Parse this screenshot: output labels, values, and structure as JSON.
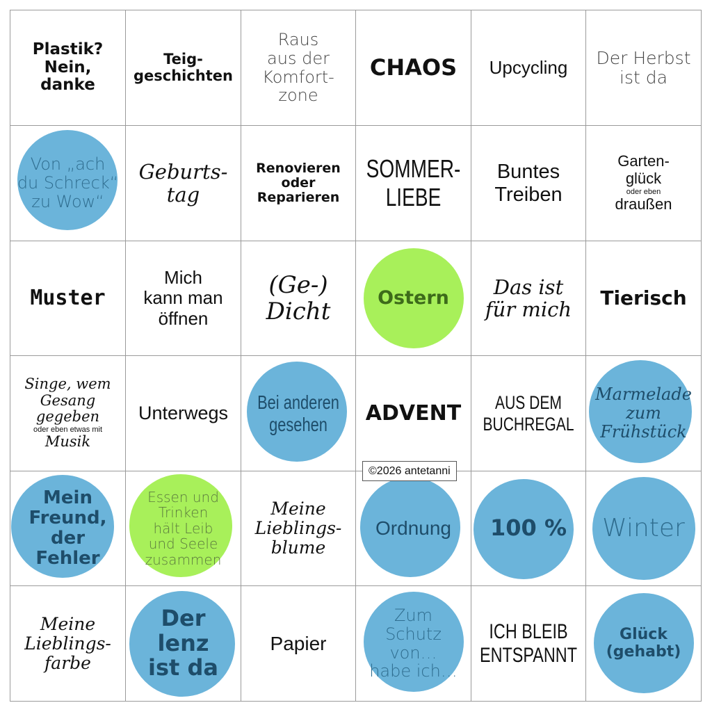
{
  "colors": {
    "blue": "#6bb4da",
    "green": "#a8f05a",
    "border": "#9a9a9a"
  },
  "cells": [
    {
      "lines": [
        "Plastik?",
        "Nein,",
        "danke"
      ],
      "font": "f-black",
      "size": 23,
      "circle": null
    },
    {
      "lines": [
        "Teig-",
        "geschichten"
      ],
      "font": "f-black",
      "size": 21,
      "circle": null
    },
    {
      "lines": [
        "Raus",
        "aus der",
        "Komfort-",
        "zone"
      ],
      "font": "f-light",
      "size": 24,
      "circle": null
    },
    {
      "lines": [
        "CHAOS"
      ],
      "font": "f-black",
      "size": 32,
      "circle": null
    },
    {
      "lines": [
        "Upcycling"
      ],
      "font": "f-sans",
      "size": 26,
      "circle": null
    },
    {
      "lines": [
        "Der Herbst",
        "ist da"
      ],
      "font": "f-light",
      "size": 25,
      "circle": null
    },
    {
      "lines": [
        "Von „ach",
        "du Schreck“",
        "zu Wow“"
      ],
      "font": "f-light",
      "size": 24,
      "circle": "blue"
    },
    {
      "lines": [
        "Geburts-",
        "tag"
      ],
      "font": "f-serif",
      "size": 29,
      "circle": null
    },
    {
      "lines": [
        "Renovieren",
        "oder",
        "Reparieren"
      ],
      "font": "f-black",
      "size": 19,
      "circle": null
    },
    {
      "lines": [
        "SOMMER-",
        "LIEBE"
      ],
      "font": "f-cond",
      "size": 36,
      "circle": null
    },
    {
      "lines": [
        "Buntes",
        "Treiben"
      ],
      "font": "f-sans",
      "size": 29,
      "circle": null
    },
    {
      "lines": [
        "Garten-",
        "glück",
        "oder eben",
        "draußen"
      ],
      "font": "f-sans",
      "size": 22,
      "small": [
        2
      ],
      "circle": null
    },
    {
      "lines": [
        "Muster"
      ],
      "font": "f-mono",
      "size": 30,
      "circle": null
    },
    {
      "lines": [
        "Mich",
        "kann man",
        "öffnen"
      ],
      "font": "f-sans",
      "size": 26,
      "circle": null
    },
    {
      "lines": [
        "(Ge-)",
        "Dicht"
      ],
      "font": "f-serif",
      "size": 34,
      "circle": null
    },
    {
      "lines": [
        "Ostern"
      ],
      "font": "f-black",
      "size": 27,
      "circle": "green"
    },
    {
      "lines": [
        "Das ist",
        "für mich"
      ],
      "font": "f-serif",
      "size": 29,
      "circle": null
    },
    {
      "lines": [
        "Tierisch"
      ],
      "font": "f-black",
      "size": 28,
      "circle": null
    },
    {
      "lines": [
        "Singe, wem",
        "Gesang",
        "gegeben",
        "oder eben etwas mit",
        "Musik"
      ],
      "font": "f-serif",
      "size": 21,
      "small": [
        3
      ],
      "circle": null
    },
    {
      "lines": [
        "Unterwegs"
      ],
      "font": "f-sans",
      "size": 27,
      "circle": null
    },
    {
      "lines": [
        "Bei anderen",
        "gesehen"
      ],
      "font": "f-cond",
      "size": 28,
      "circle": "blue"
    },
    {
      "lines": [
        "ADVENT"
      ],
      "font": "f-black",
      "size": 30,
      "circle": null
    },
    {
      "lines": [
        "AUS DEM",
        "BUCHREGAL"
      ],
      "font": "f-cond",
      "size": 27,
      "circle": null
    },
    {
      "lines": [
        "Marmelade",
        "zum",
        "Frühstück"
      ],
      "font": "f-serif",
      "size": 24,
      "circle": "blue"
    },
    {
      "lines": [
        "Mein",
        "Freund,",
        "der",
        "Fehler"
      ],
      "font": "f-black",
      "size": 26,
      "circle": "blue"
    },
    {
      "lines": [
        "Essen und",
        "Trinken",
        "hält Leib",
        "und Seele",
        "zusammen"
      ],
      "font": "f-light",
      "size": 20,
      "circle": "green"
    },
    {
      "lines": [
        "Meine",
        "Lieblings-",
        "blume"
      ],
      "font": "f-serif",
      "size": 25,
      "circle": null
    },
    {
      "lines": [
        "Ordnung"
      ],
      "font": "f-sans",
      "size": 28,
      "circle": "blue"
    },
    {
      "lines": [
        "100 %"
      ],
      "font": "f-black",
      "size": 32,
      "circle": "blue"
    },
    {
      "lines": [
        "Winter"
      ],
      "font": "f-light",
      "size": 36,
      "circle": "blue"
    },
    {
      "lines": [
        "Meine",
        "Lieblings-",
        "farbe"
      ],
      "font": "f-serif",
      "size": 25,
      "circle": null
    },
    {
      "lines": [
        "Der",
        "lenz",
        "ist da"
      ],
      "font": "f-black",
      "size": 32,
      "circle": "blue"
    },
    {
      "lines": [
        "Papier"
      ],
      "font": "f-sans",
      "size": 28,
      "circle": null
    },
    {
      "lines": [
        "Zum",
        "Schutz",
        "von…",
        "habe ich…"
      ],
      "font": "f-light",
      "size": 24,
      "circle": "blue"
    },
    {
      "lines": [
        "ICH BLEIB",
        "ENTSPANNT"
      ],
      "font": "f-cond",
      "size": 30,
      "circle": null
    },
    {
      "lines": [
        "Glück",
        "(gehabt)"
      ],
      "font": "f-black",
      "size": 22,
      "circle": "blue"
    }
  ],
  "copyright": "©2026 antetanni"
}
